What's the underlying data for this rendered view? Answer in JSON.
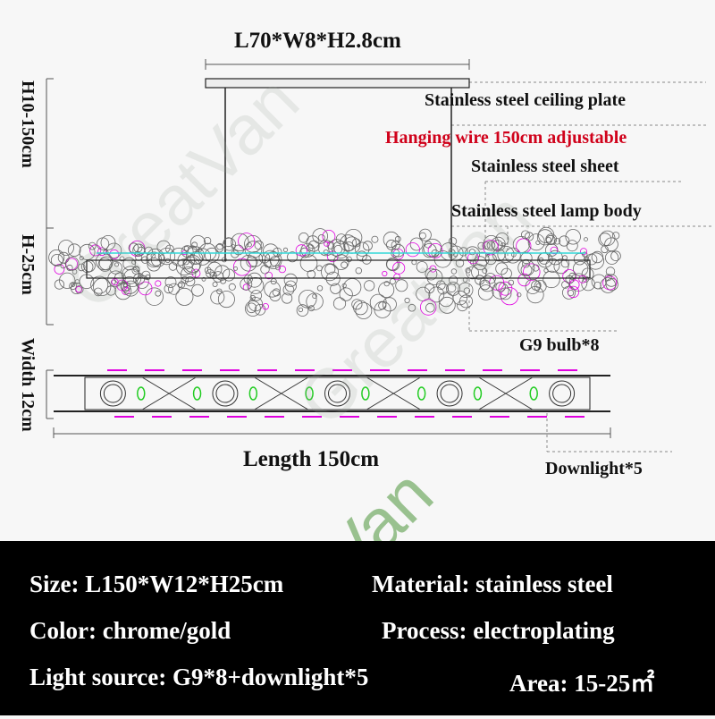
{
  "watermark": "GreatVan",
  "top_dimension": "L70*W8*H2.8cm",
  "side_labels": {
    "total_height": "H10-150cm",
    "body_height": "H-25cm",
    "width": "Width 12cm"
  },
  "callouts": {
    "ceiling_plate": "Stainless steel ceiling plate",
    "hanging_wire": "Hanging wire 150cm adjustable",
    "sheet": "Stainless steel sheet",
    "lamp_body": "Stainless steel lamp body",
    "bulb": "G9 bulb*8",
    "downlight": "Downlight*5"
  },
  "length_label": "Length 150cm",
  "colors": {
    "hanging_wire": "#d0021b",
    "panel_bg": "#000000",
    "panel_text": "#ffffff",
    "bulb_marks": "#22cc22",
    "accent_magenta": "#e000e0",
    "accent_cyan": "#20d0d0"
  },
  "specs": {
    "size": "Size: L150*W12*H25cm",
    "material": "Material: stainless steel",
    "color": "Color: chrome/gold",
    "process": "Process: electroplating",
    "light_source": "Light source: G9*8+downlight*5",
    "area": "Area: 15-25㎡"
  }
}
